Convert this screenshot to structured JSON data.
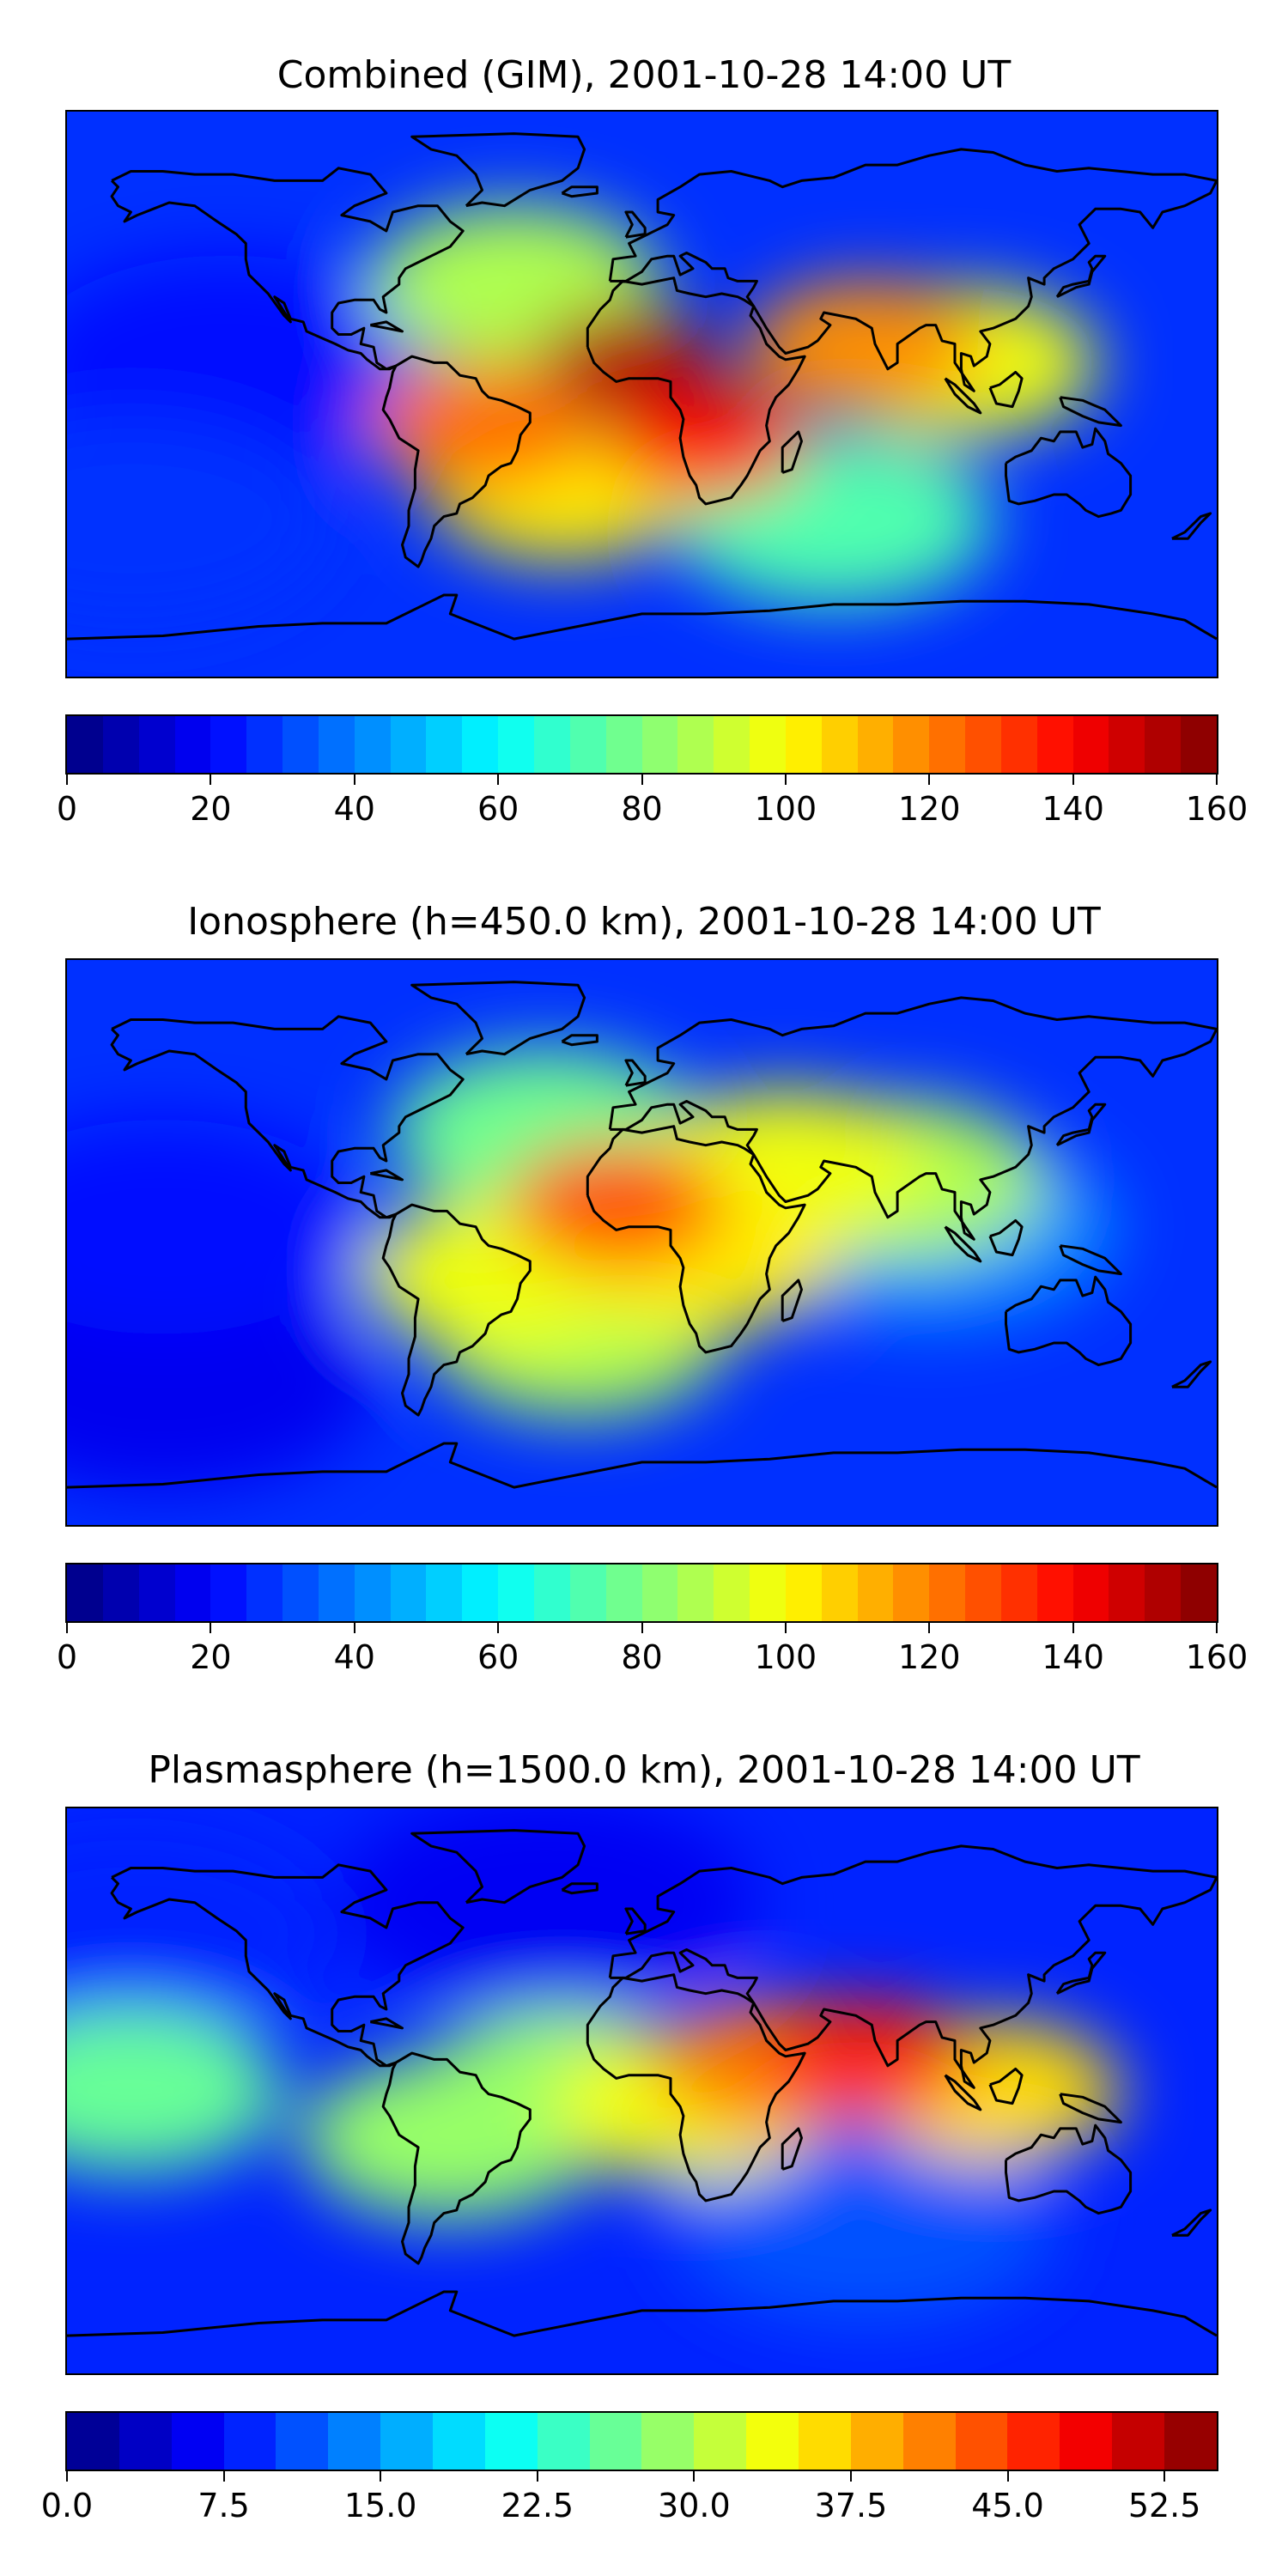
{
  "chart_data": [
    {
      "type": "heatmap",
      "title": "Combined (GIM), 2001-10-28 14:00 UT",
      "quantity": "TEC",
      "colormap": "jet",
      "colorbar": {
        "range": [
          0,
          160
        ],
        "ticks": [
          0,
          20,
          40,
          60,
          80,
          100,
          120,
          140,
          160
        ],
        "tick_labels": [
          "0",
          "20",
          "40",
          "60",
          "80",
          "100",
          "120",
          "140",
          "160"
        ],
        "levels": 32
      },
      "features": [
        {
          "name": "west-africa-max",
          "lon": -5,
          "lat": 12,
          "value": 150
        },
        {
          "name": "southern-africa-band",
          "lon": 20,
          "lat": -15,
          "value": 135
        },
        {
          "name": "south-america-band",
          "lon": -50,
          "lat": -10,
          "value": 120
        },
        {
          "name": "arabia-india-band",
          "lon": 70,
          "lat": 15,
          "value": 115
        },
        {
          "name": "south-atlantic-band",
          "lon": -25,
          "lat": -30,
          "value": 100
        },
        {
          "name": "south-asia-band",
          "lon": 100,
          "lat": 10,
          "value": 95
        },
        {
          "name": "north-atlantic-band",
          "lon": -40,
          "lat": 35,
          "value": 85
        },
        {
          "name": "southern-ocean-band",
          "lon": 60,
          "lat": -40,
          "value": 70
        },
        {
          "name": "pacific-low",
          "lon": -130,
          "lat": 10,
          "value": 20
        },
        {
          "name": "south-pacific-low",
          "lon": -160,
          "lat": -40,
          "value": 25
        }
      ]
    },
    {
      "type": "heatmap",
      "title": "Ionosphere  (h=450.0 km), 2001-10-28 14:00 UT",
      "quantity": "TEC",
      "colormap": "jet",
      "colorbar": {
        "range": [
          0,
          160
        ],
        "ticks": [
          0,
          20,
          40,
          60,
          80,
          100,
          120,
          140,
          160
        ],
        "tick_labels": [
          "0",
          "20",
          "40",
          "60",
          "80",
          "100",
          "120",
          "140",
          "160"
        ],
        "levels": 32
      },
      "features": [
        {
          "name": "west-africa-max",
          "lon": -8,
          "lat": 12,
          "value": 125
        },
        {
          "name": "africa-band",
          "lon": 20,
          "lat": -5,
          "value": 100
        },
        {
          "name": "south-america-band",
          "lon": -45,
          "lat": -10,
          "value": 95
        },
        {
          "name": "arabia-band",
          "lon": 45,
          "lat": 25,
          "value": 95
        },
        {
          "name": "south-atlantic-band",
          "lon": -20,
          "lat": -30,
          "value": 85
        },
        {
          "name": "india-band",
          "lon": 80,
          "lat": 20,
          "value": 85
        },
        {
          "name": "north-atlantic-band",
          "lon": -30,
          "lat": 35,
          "value": 75
        },
        {
          "name": "bay-of-bengal-low",
          "lon": 90,
          "lat": 5,
          "value": 40
        },
        {
          "name": "pacific-low",
          "lon": -150,
          "lat": 5,
          "value": 20
        },
        {
          "name": "south-pacific-low",
          "lon": -150,
          "lat": -45,
          "value": 15
        }
      ]
    },
    {
      "type": "heatmap",
      "title": "Plasmasphere (h=1500.0 km), 2001-10-28 14:00 UT",
      "quantity": "TEC",
      "colormap": "jet",
      "colorbar": {
        "range": [
          0,
          55
        ],
        "ticks": [
          0,
          7.5,
          15,
          22.5,
          30,
          37.5,
          45,
          52.5
        ],
        "tick_labels": [
          "0.0",
          "7.5",
          "15.0",
          "22.5",
          "30.0",
          "37.5",
          "45.0",
          "52.5"
        ],
        "levels": 22
      },
      "features": [
        {
          "name": "indian-ocean-max",
          "lon": 70,
          "lat": 10,
          "value": 45
        },
        {
          "name": "east-africa-band",
          "lon": 40,
          "lat": 8,
          "value": 40
        },
        {
          "name": "southeast-asia-band",
          "lon": 110,
          "lat": 0,
          "value": 36
        },
        {
          "name": "africa-band",
          "lon": 15,
          "lat": -5,
          "value": 33
        },
        {
          "name": "atlantic-band",
          "lon": -25,
          "lat": 0,
          "value": 28
        },
        {
          "name": "pacific-band",
          "lon": -160,
          "lat": 0,
          "value": 27
        },
        {
          "name": "south-america-band",
          "lon": -60,
          "lat": -15,
          "value": 28
        },
        {
          "name": "south-indian-low",
          "lon": 70,
          "lat": -42,
          "value": 12
        },
        {
          "name": "north-pacific-low",
          "lon": -160,
          "lat": 50,
          "value": 8
        },
        {
          "name": "north-atlantic-low",
          "lon": -30,
          "lat": 60,
          "value": 5
        }
      ]
    }
  ]
}
